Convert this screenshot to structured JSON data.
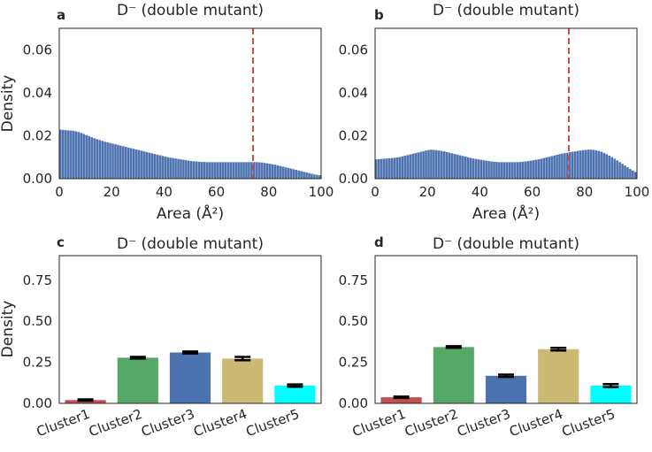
{
  "colors": {
    "hist_bar": "#4c72b0",
    "vline": "#c44e52",
    "axis": "#262626",
    "clusters": [
      "#c44e52",
      "#55a868",
      "#4c72b0",
      "#ccb974",
      "#00ffff"
    ]
  },
  "chart_data": [
    {
      "id": "a",
      "panel_label": "a",
      "type": "bar",
      "subtype": "histogram",
      "title": "D⁻ (double mutant)",
      "xlabel": "Area (Å²)",
      "ylabel": "Density",
      "xlim": [
        0,
        100
      ],
      "ylim": [
        0,
        0.07
      ],
      "xticks": [
        "0",
        "20",
        "40",
        "60",
        "80",
        "100"
      ],
      "yticks": [
        "0.00",
        "0.02",
        "0.04",
        "0.06"
      ],
      "vline_x": 74,
      "bin_width": 1,
      "density": [
        0.0228,
        0.0227,
        0.0226,
        0.0225,
        0.0224,
        0.0223,
        0.022,
        0.0217,
        0.0213,
        0.0208,
        0.0203,
        0.0198,
        0.0193,
        0.0188,
        0.0184,
        0.018,
        0.0176,
        0.0172,
        0.0169,
        0.0166,
        0.0163,
        0.016,
        0.0157,
        0.0154,
        0.0151,
        0.0148,
        0.0145,
        0.0142,
        0.0139,
        0.0136,
        0.0133,
        0.013,
        0.0127,
        0.0124,
        0.0121,
        0.0118,
        0.0115,
        0.0112,
        0.0109,
        0.0106,
        0.0103,
        0.01,
        0.0098,
        0.0096,
        0.0094,
        0.0092,
        0.009,
        0.0088,
        0.0086,
        0.0084,
        0.0082,
        0.0081,
        0.008,
        0.0079,
        0.0078,
        0.0078,
        0.0077,
        0.0077,
        0.0077,
        0.0077,
        0.0077,
        0.0077,
        0.0077,
        0.0077,
        0.0077,
        0.0077,
        0.0077,
        0.0077,
        0.0077,
        0.0077,
        0.0077,
        0.0077,
        0.0077,
        0.0077,
        0.0077,
        0.0077,
        0.0076,
        0.0075,
        0.0073,
        0.0071,
        0.0069,
        0.0067,
        0.0065,
        0.0062,
        0.0059,
        0.0056,
        0.0053,
        0.005,
        0.0047,
        0.0044,
        0.0041,
        0.0038,
        0.0035,
        0.0032,
        0.0029,
        0.0026,
        0.0023,
        0.002,
        0.0018,
        0.0016
      ]
    },
    {
      "id": "b",
      "panel_label": "b",
      "type": "bar",
      "subtype": "histogram",
      "title": "D⁻ (double mutant)",
      "xlabel": "Area (Å²)",
      "ylabel": "",
      "xlim": [
        0,
        100
      ],
      "ylim": [
        0,
        0.07
      ],
      "xticks": [
        "0",
        "20",
        "40",
        "60",
        "80",
        "100"
      ],
      "yticks": [
        "0.00",
        "0.02",
        "0.04",
        "0.06"
      ],
      "vline_x": 74,
      "bin_width": 1,
      "density": [
        0.009,
        0.0091,
        0.0092,
        0.0093,
        0.0094,
        0.0095,
        0.0096,
        0.0097,
        0.0099,
        0.0101,
        0.0104,
        0.0107,
        0.011,
        0.0113,
        0.0116,
        0.0119,
        0.0122,
        0.0125,
        0.0128,
        0.0131,
        0.0133,
        0.0135,
        0.0134,
        0.0133,
        0.0131,
        0.0129,
        0.0127,
        0.0124,
        0.0121,
        0.0118,
        0.0115,
        0.0112,
        0.0109,
        0.0106,
        0.0103,
        0.01,
        0.0097,
        0.0094,
        0.0092,
        0.009,
        0.0088,
        0.0086,
        0.0084,
        0.0082,
        0.008,
        0.0079,
        0.0078,
        0.0077,
        0.0077,
        0.0077,
        0.0077,
        0.0077,
        0.0077,
        0.0077,
        0.0077,
        0.0078,
        0.0079,
        0.008,
        0.0082,
        0.0084,
        0.0086,
        0.0088,
        0.009,
        0.0093,
        0.0096,
        0.0099,
        0.0102,
        0.0105,
        0.0108,
        0.0111,
        0.0114,
        0.0117,
        0.0119,
        0.0121,
        0.0123,
        0.0125,
        0.0127,
        0.0129,
        0.0131,
        0.0133,
        0.0134,
        0.0135,
        0.0135,
        0.0134,
        0.0132,
        0.0129,
        0.0125,
        0.012,
        0.0114,
        0.0107,
        0.01,
        0.0093,
        0.0085,
        0.0077,
        0.0069,
        0.0061,
        0.0053,
        0.0045,
        0.0038,
        0.0031
      ]
    },
    {
      "id": "c",
      "panel_label": "c",
      "type": "bar",
      "title": "D⁻ (double mutant)",
      "xlabel": "",
      "ylabel": "Density",
      "ylim": [
        0,
        0.9
      ],
      "yticks": [
        "0.00",
        "0.25",
        "0.50",
        "0.75"
      ],
      "categories": [
        "Cluster1",
        "Cluster2",
        "Cluster3",
        "Cluster4",
        "Cluster5"
      ],
      "values": [
        0.02,
        0.278,
        0.31,
        0.273,
        0.108
      ],
      "errors": [
        0.004,
        0.005,
        0.006,
        0.01,
        0.007
      ]
    },
    {
      "id": "d",
      "panel_label": "d",
      "type": "bar",
      "title": "D⁻ (double mutant)",
      "xlabel": "",
      "ylabel": "",
      "ylim": [
        0,
        0.9
      ],
      "yticks": [
        "0.00",
        "0.25",
        "0.50",
        "0.75"
      ],
      "categories": [
        "Cluster1",
        "Cluster2",
        "Cluster3",
        "Cluster4",
        "Cluster5"
      ],
      "values": [
        0.037,
        0.343,
        0.168,
        0.33,
        0.108
      ],
      "errors": [
        0.004,
        0.005,
        0.007,
        0.008,
        0.009
      ]
    }
  ]
}
